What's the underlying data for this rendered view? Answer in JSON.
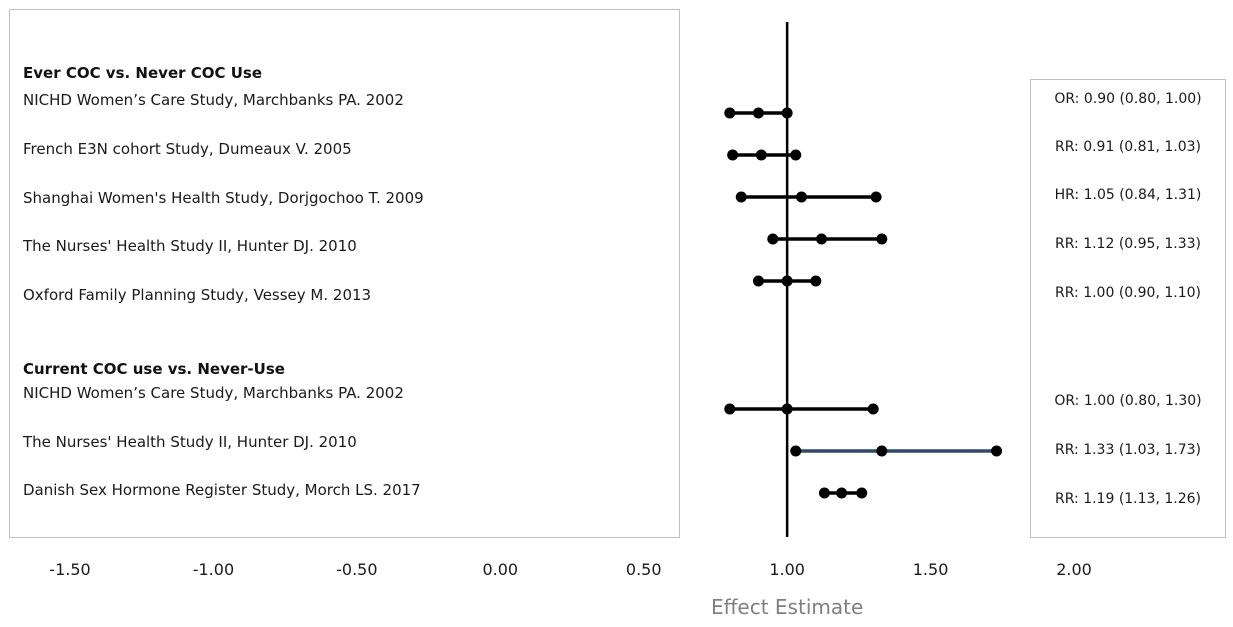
{
  "chart_data": {
    "type": "forest",
    "xlabel": "Effect Estimate",
    "xlim": [
      -1.5,
      2.0
    ],
    "reference_line": 1.0,
    "x_ticks": [
      "-1.50",
      "-1.00",
      "-0.50",
      "0.00",
      "0.50",
      "1.00",
      "1.50",
      "2.00"
    ],
    "x_tick_values": [
      -1.5,
      -1.0,
      -0.5,
      0.0,
      0.5,
      1.0,
      1.5,
      2.0
    ],
    "groups": [
      {
        "heading": "Ever COC vs. Never COC Use",
        "studies": [
          {
            "label": "NICHD Women’s Care Study, Marchbanks PA. 2002",
            "measure": "OR",
            "estimate": 0.9,
            "lower": 0.8,
            "upper": 1.0,
            "summary": "OR: 0.90 (0.80, 1.00)",
            "line_color": "#000000"
          },
          {
            "label": "French E3N cohort Study, Dumeaux V. 2005",
            "measure": "RR",
            "estimate": 0.91,
            "lower": 0.81,
            "upper": 1.03,
            "summary": "RR: 0.91 (0.81, 1.03)",
            "line_color": "#000000"
          },
          {
            "label": "Shanghai Women's Health Study, Dorjgochoo T. 2009",
            "measure": "HR",
            "estimate": 1.05,
            "lower": 0.84,
            "upper": 1.31,
            "summary": "HR: 1.05 (0.84, 1.31)",
            "line_color": "#000000"
          },
          {
            "label": "The Nurses' Health Study II, Hunter DJ. 2010",
            "measure": "RR",
            "estimate": 1.12,
            "lower": 0.95,
            "upper": 1.33,
            "summary": "RR: 1.12 (0.95, 1.33)",
            "line_color": "#000000"
          },
          {
            "label": "Oxford Family Planning Study, Vessey M. 2013",
            "measure": "RR",
            "estimate": 1.0,
            "lower": 0.9,
            "upper": 1.1,
            "summary": "RR: 1.00 (0.90, 1.10)",
            "line_color": "#000000"
          }
        ]
      },
      {
        "heading": "Current COC use vs. Never-Use",
        "studies": [
          {
            "label": "NICHD Women’s Care Study, Marchbanks PA. 2002",
            "measure": "OR",
            "estimate": 1.0,
            "lower": 0.8,
            "upper": 1.3,
            "summary": "OR: 1.00 (0.80, 1.30)",
            "line_color": "#000000"
          },
          {
            "label": "The Nurses' Health Study II, Hunter DJ. 2010",
            "measure": "RR",
            "estimate": 1.33,
            "lower": 1.03,
            "upper": 1.73,
            "summary": "RR: 1.33 (1.03, 1.73)",
            "line_color": "#2e4a6b"
          },
          {
            "label": "Danish Sex Hormone Register Study, Morch LS. 2017",
            "measure": "RR",
            "estimate": 1.19,
            "lower": 1.13,
            "upper": 1.26,
            "summary": "RR: 1.19 (1.13, 1.26)",
            "line_color": "#000000"
          }
        ]
      }
    ],
    "colors": {
      "marker": "#000000",
      "reference_line": "#000000",
      "box_border": "#bfbfbf",
      "axis_title": "#7f7f7f"
    }
  }
}
